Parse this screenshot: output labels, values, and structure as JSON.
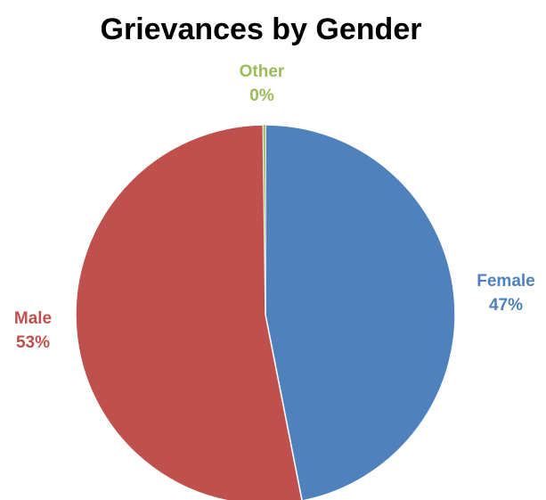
{
  "chart_data": {
    "type": "pie",
    "title": "Grievances by Gender",
    "slices": [
      {
        "label": "Female",
        "percent_label": "47%",
        "value": 47,
        "color": "#4F81BD"
      },
      {
        "label": "Male",
        "percent_label": "53%",
        "value": 53,
        "color": "#C0504D"
      },
      {
        "label": "Other",
        "percent_label": "0%",
        "value": 0.2,
        "color": "#9BBB59"
      }
    ],
    "start_angle_deg": 0,
    "direction": "clockwise",
    "legend": "none",
    "data_labels": "outside"
  }
}
